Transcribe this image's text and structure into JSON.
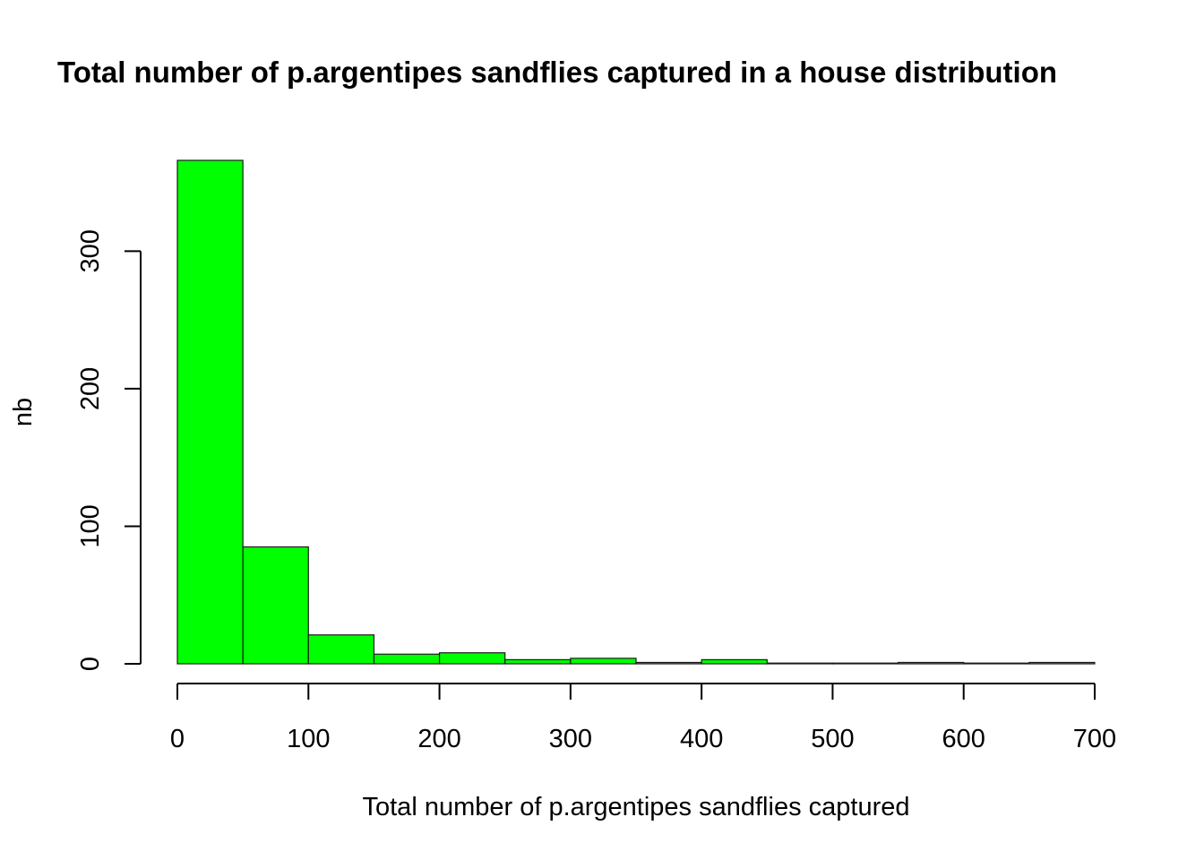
{
  "chart_data": {
    "type": "bar",
    "title": "Total number of p.argentipes sandflies captured in a house distribution",
    "xlabel": "Total number of p.argentipes sandflies captured",
    "ylabel": "nb",
    "bin_width": 50,
    "bins": [
      {
        "start": 0,
        "end": 50,
        "count": 366
      },
      {
        "start": 50,
        "end": 100,
        "count": 85
      },
      {
        "start": 100,
        "end": 150,
        "count": 21
      },
      {
        "start": 150,
        "end": 200,
        "count": 7
      },
      {
        "start": 200,
        "end": 250,
        "count": 8
      },
      {
        "start": 250,
        "end": 300,
        "count": 3
      },
      {
        "start": 300,
        "end": 350,
        "count": 4
      },
      {
        "start": 350,
        "end": 400,
        "count": 1
      },
      {
        "start": 400,
        "end": 450,
        "count": 3
      },
      {
        "start": 450,
        "end": 500,
        "count": 0
      },
      {
        "start": 500,
        "end": 550,
        "count": 0
      },
      {
        "start": 550,
        "end": 600,
        "count": 1
      },
      {
        "start": 600,
        "end": 650,
        "count": 0
      },
      {
        "start": 650,
        "end": 700,
        "count": 1
      }
    ],
    "xlim": [
      0,
      700
    ],
    "ylim": [
      0,
      366
    ],
    "xticks": [
      "0",
      "100",
      "200",
      "300",
      "400",
      "500",
      "600",
      "700"
    ],
    "yticks": [
      "0",
      "100",
      "200",
      "300"
    ],
    "bar_color": "#00ff00",
    "grid": false,
    "legend": "none"
  }
}
